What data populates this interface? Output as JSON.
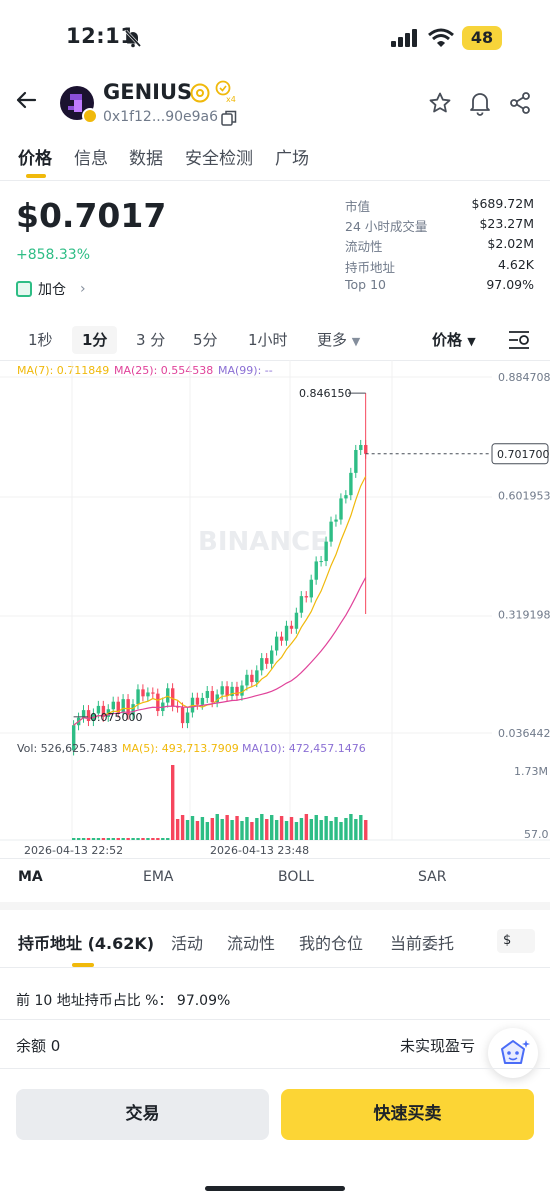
{
  "status": {
    "time": "12:11",
    "battery": "48"
  },
  "header": {
    "token_name": "GENIUS",
    "address": "0x1f12...90e9a6",
    "icons": [
      "back-arrow-icon",
      "star-icon",
      "bell-icon",
      "share-icon",
      "copy-icon",
      "verified-at-icon",
      "badge-x4-icon"
    ]
  },
  "tabs": [
    "价格",
    "信息",
    "数据",
    "安全检测",
    "广场"
  ],
  "price": {
    "value": "$0.7017",
    "change": "+858.33%",
    "add_position": "加仓"
  },
  "stats": [
    {
      "label": "市值",
      "value": "$689.72M"
    },
    {
      "label": "24 小时成交量",
      "value": "$23.27M"
    },
    {
      "label": "流动性",
      "value": "$2.02M"
    },
    {
      "label": "持币地址",
      "value": "4.62K"
    },
    {
      "label": "Top 10",
      "value": "97.09%"
    }
  ],
  "intervals": [
    "1秒",
    "1分",
    "3 分",
    "5分",
    "1小时",
    "更多"
  ],
  "interval_active": "1分",
  "price_selector": "价格",
  "chart": {
    "ma7": "MA(7): 0.711849",
    "ma25": "MA(25): 0.554538",
    "ma99": "MA(99): --",
    "y_ticks": [
      "0.884708",
      "0.601953",
      "0.319198",
      "0.036442"
    ],
    "current_price": "0.701700",
    "high_label": "0.846150",
    "low_label": "0.075000",
    "watermark": "BINANCE",
    "vol": "Vol: 526,625.7483",
    "vol_ma5": "MA(5): 493,713.7909",
    "vol_ma10": "MA(10): 472,457.1476",
    "vol_ticks": [
      "1.73M",
      "57.0"
    ],
    "x_labels": [
      "2026-04-13 22:52",
      "2026-04-13 23:48"
    ],
    "colors": {
      "up": "#2ebd85",
      "down": "#f6465d",
      "ma7": "#f0b90b",
      "ma25": "#e0439a",
      "ma99": "#8b6fd4"
    }
  },
  "indicators": [
    "MA",
    "EMA",
    "BOLL",
    "SAR"
  ],
  "bottom_tabs": [
    "持币地址 (4.62K)",
    "活动",
    "流动性",
    "我的仓位",
    "当前委托"
  ],
  "currency": "$",
  "top10_text": "前 10 地址持币占比 %：  97.09%",
  "balance": "余额 0",
  "unrealized": "未实现盈亏",
  "buttons": {
    "trade": "交易",
    "quick": "快速买卖"
  }
}
